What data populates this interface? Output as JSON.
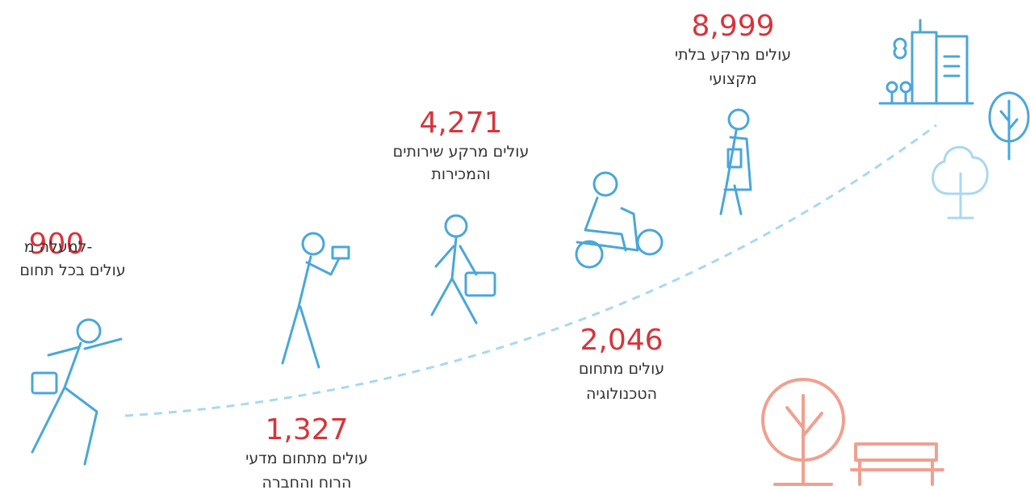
{
  "items": [
    {
      "number": "8,999",
      "lines": [
        "עולים מרקע בלתי",
        "מקצועי"
      ]
    },
    {
      "number": "4,271",
      "lines": [
        "עולים מרקע שירותים",
        "והמכירות"
      ]
    },
    {
      "prefix": "למעלה מ-",
      "number": "900",
      "lines": [
        "עולים בכל תחום"
      ]
    },
    {
      "number": "2,046",
      "lines": [
        "עולים מתחום",
        "הטכנולוגיה"
      ]
    },
    {
      "number": "1,327",
      "lines": [
        "עולים מתחום מדעי",
        "הרוח והחברה"
      ]
    }
  ]
}
